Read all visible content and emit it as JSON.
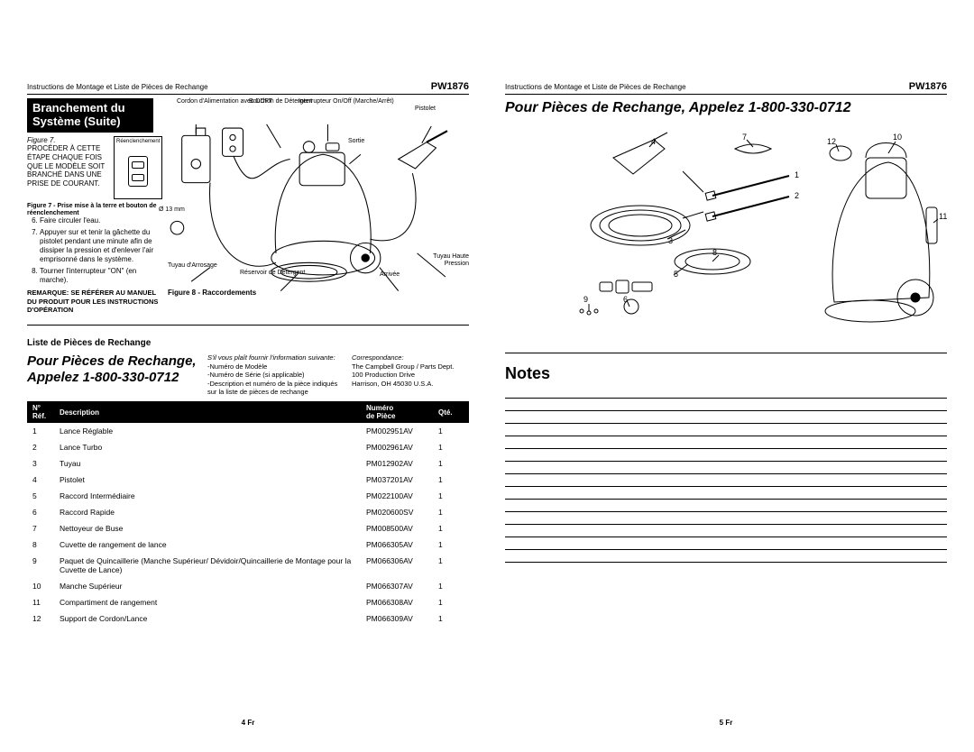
{
  "model": "PW1876",
  "docTitle": "Instructions de Montage et Liste de Pièces de Rechange",
  "leftPage": {
    "sectionTitle1": "Branchement du",
    "sectionTitle2": "Système (Suite)",
    "fig7": {
      "label": "Figure 7.",
      "reenc": "Réenclenchement",
      "text": "PROCÉDER À CETTE ÉTAPE CHAQUE FOIS QUE LE MODÈLE SOIT BRANCHÉ DANS UNE PRISE DE COURANT.",
      "caption": "Figure 7 - Prise mise à la terre et bouton de réenclenchement"
    },
    "steps": [
      "Faire circuler l'eau.",
      "Appuyer sur et tenir la gâchette du pistolet pendant une minute afin de dissiper la pression et d'enlever l'air emprisonné dans le système.",
      "Tourner l'interrupteur \"ON\" (en marche)."
    ],
    "stepStart": 6,
    "remark": "REMARQUE: SE RÉFÉRER AU MANUEL DU PRODUIT POUR LES INSTRUCTIONS D'OPÉRATION",
    "diagLabels": {
      "cord": "Cordon d'Alimentation avec DDFT",
      "bouchon": "Bouchon de Détergent",
      "interrupt": "Interrupteur On/Off (Marche/Arrêt)",
      "pistolet": "Pistolet",
      "sortie": "Sortie",
      "tuyauArr": "Tuyau d'Arrosage",
      "reservoir": "Réservoir de Détergent",
      "arrivee": "Arrivée",
      "tuyauHP": "Tuyau Haute Pression",
      "diam": "Ø 13 mm",
      "caption": "Figure 8 - Raccordements"
    },
    "partsSubtitle": "Liste de Pièces de Rechange",
    "callTitle": "Pour Pièces de Rechange, Appelez 1-800-330-0712",
    "fineprint": {
      "l1": "S'il vous plaît fournir l'information suivante:",
      "l2": "-Numéro de Modèle",
      "l3": "-Numéro de Série (si applicable)",
      "l4": "-Description et numéro de la pièce indiqués sur la liste de pièces de rechange"
    },
    "correspond": {
      "title": "Correspondance:",
      "l1": "The Campbell Group / Parts Dept.",
      "l2": "100 Production Drive",
      "l3": "Harrison, OH  45030  U.S.A."
    },
    "tableHead": {
      "ref": "N°\nRéf.",
      "desc": "Description",
      "num": "Numéro\nde Pièce",
      "qty": "Qté."
    },
    "parts": [
      {
        "n": "1",
        "d": "Lance Réglable",
        "p": "PM002951AV",
        "q": "1"
      },
      {
        "n": "2",
        "d": "Lance Turbo",
        "p": "PM002961AV",
        "q": "1"
      },
      {
        "n": "3",
        "d": "Tuyau",
        "p": "PM012902AV",
        "q": "1"
      },
      {
        "n": "4",
        "d": "Pistolet",
        "p": "PM037201AV",
        "q": "1"
      },
      {
        "n": "5",
        "d": "Raccord Intermédiaire",
        "p": "PM022100AV",
        "q": "1"
      },
      {
        "n": "6",
        "d": "Raccord Rapide",
        "p": "PM020600SV",
        "q": "1"
      },
      {
        "n": "7",
        "d": "Nettoyeur de Buse",
        "p": "PM008500AV",
        "q": "1"
      },
      {
        "n": "8",
        "d": "Cuvette de rangement de lance",
        "p": "PM066305AV",
        "q": "1"
      },
      {
        "n": "9",
        "d": "Paquet de Quincaillerie (Manche Supérieur/ Dévidoir/Quincaillerie de Montage pour la Cuvette de Lance)",
        "p": "PM066306AV",
        "q": "1"
      },
      {
        "n": "10",
        "d": "Manche Supérieur",
        "p": "PM066307AV",
        "q": "1"
      },
      {
        "n": "11",
        "d": "Compartiment de rangement",
        "p": "PM066308AV",
        "q": "1"
      },
      {
        "n": "12",
        "d": "Support de Cordon/Lance",
        "p": "PM066309AV",
        "q": "1"
      }
    ],
    "pageNum": "4 Fr"
  },
  "rightPage": {
    "title": "Pour Pièces de Rechange, Appelez 1-800-330-0712",
    "callouts": [
      "1",
      "2",
      "3",
      "4",
      "5",
      "6",
      "7",
      "8",
      "9",
      "10",
      "11",
      "12"
    ],
    "notesTitle": "Notes",
    "noteLineCount": 14,
    "pageNum": "5 Fr"
  },
  "colors": {
    "black": "#000000",
    "white": "#ffffff"
  }
}
